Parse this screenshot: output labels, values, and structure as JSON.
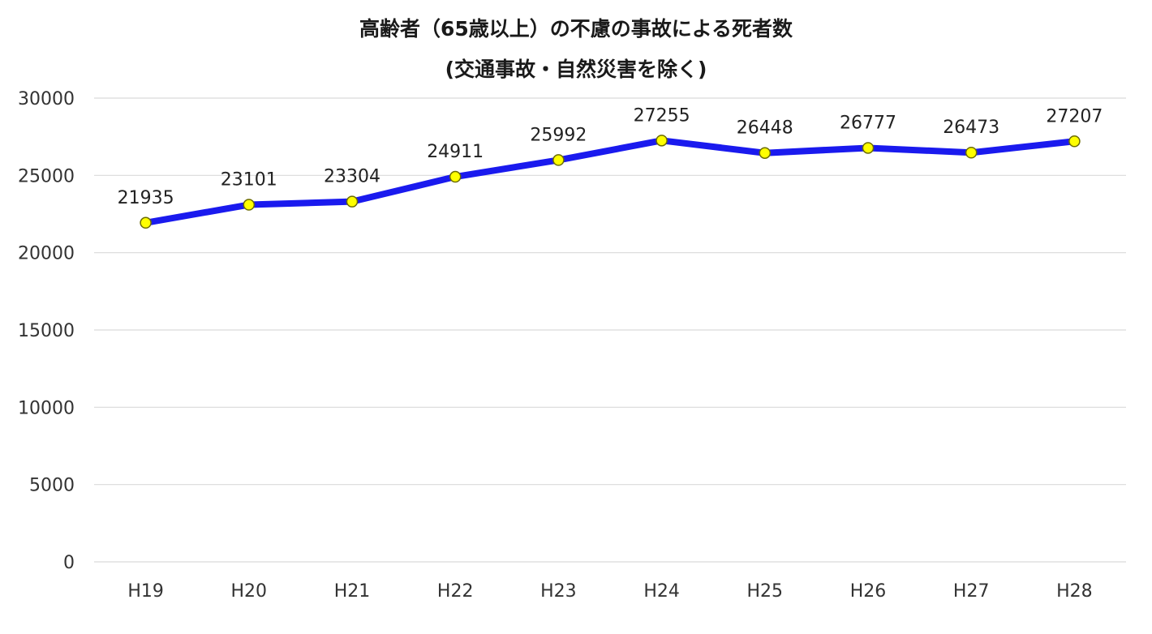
{
  "chart_data": {
    "type": "line",
    "title": "高齢者（65歳以上）の不慮の事故による死者数",
    "subtitle": "(交通事故・自然災害を除く)",
    "xlabel": "",
    "ylabel": "",
    "categories": [
      "H19",
      "H20",
      "H21",
      "H22",
      "H23",
      "H24",
      "H25",
      "H26",
      "H27",
      "H28"
    ],
    "series": [
      {
        "values": [
          21935,
          23101,
          23304,
          24911,
          25992,
          27255,
          26448,
          26777,
          26473,
          27207
        ]
      }
    ],
    "ylim": [
      0,
      30000
    ],
    "yticks": [
      "0",
      "5000",
      "10000",
      "15000",
      "20000",
      "25000",
      "30000"
    ],
    "grid": true,
    "legend": "none",
    "data_labels": true
  },
  "colors": {
    "line": "#1a1aee",
    "marker_fill": "#ffff00",
    "marker_stroke": "#6b6b00",
    "grid": "#d9d9d9"
  }
}
